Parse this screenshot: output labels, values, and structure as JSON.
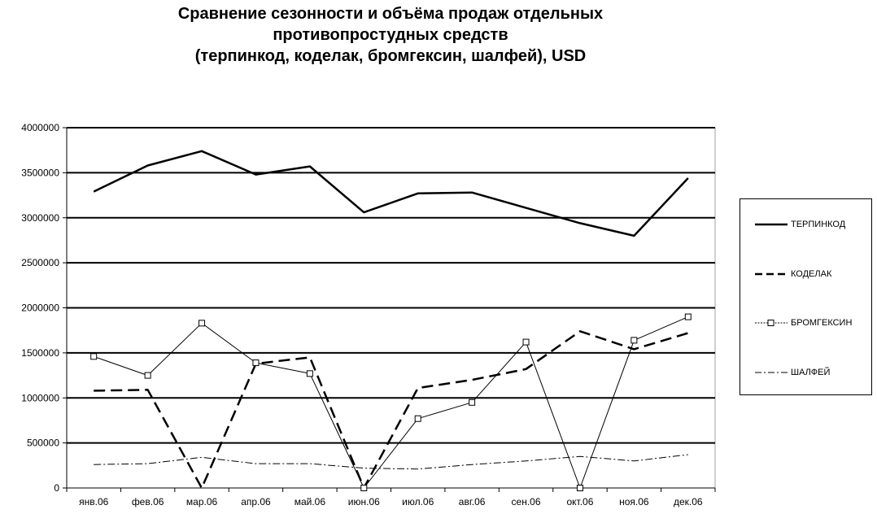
{
  "title": {
    "line1": "Сравнение сезонности и  объёма продаж отдельных",
    "line2": "противопростудных средств",
    "line3": "(терпинкод, коделак, бромгексин, шалфей), USD"
  },
  "chart_data": {
    "type": "line",
    "title": "Сравнение сезонности и  объёма продаж отдельных противопростудных средств (терпинкод, коделак, бромгексин, шалфей), USD",
    "xlabel": "",
    "ylabel": "",
    "categories": [
      "янв.06",
      "фев.06",
      "мар.06",
      "апр.06",
      "май.06",
      "июн.06",
      "июл.06",
      "авг.06",
      "сен.06",
      "окт.06",
      "ноя.06",
      "дек.06"
    ],
    "ylim": [
      0,
      4000000
    ],
    "yticks": [
      0,
      500000,
      1000000,
      1500000,
      2000000,
      2500000,
      3000000,
      3500000,
      4000000
    ],
    "ytick_labels": [
      "0",
      "500000",
      "1000000",
      "1500000",
      "2000000",
      "2500000",
      "3000000",
      "3500000",
      "4000000"
    ],
    "grid": "horizontal",
    "legend_position": "right",
    "series": [
      {
        "name": "ТЕРПИНКОД",
        "style": "solid-thick",
        "color": "#000000",
        "values": [
          3290000,
          3580000,
          3740000,
          3480000,
          3570000,
          3060000,
          3270000,
          3280000,
          3110000,
          2940000,
          2800000,
          3440000
        ]
      },
      {
        "name": "КОДЕЛАК",
        "style": "dashed-thick",
        "color": "#000000",
        "values": [
          1080000,
          1090000,
          0,
          1380000,
          1450000,
          0,
          1110000,
          1200000,
          1320000,
          1740000,
          1540000,
          1720000
        ]
      },
      {
        "name": "БРОМГЕКСИН",
        "style": "solid-thin-square-markers",
        "color": "#000000",
        "values": [
          1460000,
          1250000,
          1830000,
          1390000,
          1270000,
          0,
          770000,
          950000,
          1620000,
          0,
          1640000,
          1900000
        ]
      },
      {
        "name": "ШАЛФЕЙ",
        "style": "dash-dot-thin",
        "color": "#000000",
        "values": [
          260000,
          270000,
          340000,
          270000,
          270000,
          220000,
          210000,
          260000,
          300000,
          350000,
          300000,
          370000
        ]
      }
    ]
  }
}
